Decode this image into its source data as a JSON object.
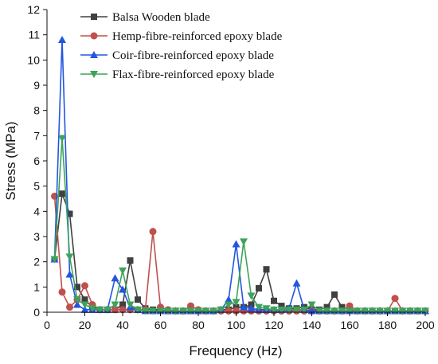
{
  "chart_data": {
    "type": "line",
    "xlabel": "Frequency (Hz)",
    "ylabel": "Stress (MPa)",
    "xlim": [
      0,
      200
    ],
    "ylim": [
      0,
      12
    ],
    "xticks": [
      "0",
      "20",
      "40",
      "60",
      "80",
      "100",
      "120",
      "140",
      "160",
      "180",
      "200"
    ],
    "yticks": [
      "0",
      "1",
      "2",
      "3",
      "4",
      "5",
      "6",
      "7",
      "8",
      "9",
      "10",
      "11",
      "12"
    ],
    "grid": false,
    "legend_position": "top-center",
    "series": [
      {
        "name": "Balsa Wooden blade",
        "color": "#404040",
        "marker": "square",
        "x": [
          4,
          8,
          12,
          16,
          20,
          24,
          28,
          32,
          36,
          40,
          44,
          48,
          52,
          56,
          60,
          64,
          68,
          72,
          76,
          80,
          84,
          88,
          92,
          96,
          100,
          104,
          108,
          112,
          116,
          120,
          124,
          128,
          132,
          136,
          140,
          144,
          148,
          152,
          156,
          160,
          164,
          168,
          172,
          176,
          180,
          184,
          188,
          192,
          196,
          200
        ],
        "y": [
          2.1,
          4.7,
          3.9,
          1.0,
          0.5,
          0.2,
          0.1,
          0.1,
          0.1,
          0.3,
          2.05,
          0.5,
          0.15,
          0.1,
          0.1,
          0.05,
          0.05,
          0.05,
          0.05,
          0.05,
          0.05,
          0.05,
          0.1,
          0.1,
          0.2,
          0.2,
          0.3,
          0.95,
          1.7,
          0.45,
          0.25,
          0.15,
          0.15,
          0.2,
          0.1,
          0.1,
          0.2,
          0.7,
          0.2,
          0.1,
          0.05,
          0.05,
          0.05,
          0.05,
          0.05,
          0.05,
          0.05,
          0.05,
          0.05,
          0.05
        ]
      },
      {
        "name": "Hemp-fibre-reinforced epoxy blade",
        "color": "#c0504d",
        "marker": "circle",
        "x": [
          4,
          8,
          12,
          16,
          20,
          24,
          28,
          32,
          36,
          40,
          44,
          48,
          52,
          56,
          60,
          64,
          68,
          72,
          76,
          80,
          84,
          88,
          92,
          96,
          100,
          104,
          108,
          112,
          116,
          120,
          124,
          128,
          132,
          136,
          140,
          144,
          148,
          152,
          156,
          160,
          164,
          168,
          172,
          176,
          180,
          184,
          188,
          192,
          196,
          200
        ],
        "y": [
          4.6,
          0.8,
          0.2,
          0.5,
          1.05,
          0.3,
          0.1,
          0.1,
          0.1,
          0.1,
          0.1,
          0.1,
          0.1,
          3.2,
          0.2,
          0.1,
          0.05,
          0.05,
          0.25,
          0.1,
          0.05,
          0.05,
          0.05,
          0.05,
          0.05,
          0.05,
          0.05,
          0.05,
          0.05,
          0.05,
          0.05,
          0.05,
          0.05,
          0.05,
          0.05,
          0.05,
          0.05,
          0.05,
          0.05,
          0.25,
          0.05,
          0.05,
          0.05,
          0.05,
          0.05,
          0.55,
          0.05,
          0.05,
          0.05,
          0.05
        ]
      },
      {
        "name": "Coir-fibre-reinforced epoxy blade",
        "color": "#2255e0",
        "marker": "triangle-up",
        "x": [
          4,
          8,
          12,
          16,
          20,
          24,
          28,
          32,
          36,
          40,
          44,
          48,
          52,
          56,
          60,
          64,
          68,
          72,
          76,
          80,
          84,
          88,
          92,
          96,
          100,
          104,
          108,
          112,
          116,
          120,
          124,
          128,
          132,
          136,
          140,
          144,
          148,
          152,
          156,
          160,
          164,
          168,
          172,
          176,
          180,
          184,
          188,
          192,
          196,
          200
        ],
        "y": [
          2.1,
          10.8,
          1.5,
          0.3,
          0.1,
          0.1,
          0.1,
          0.1,
          1.35,
          0.9,
          0.2,
          0.1,
          0.05,
          0.05,
          0.05,
          0.05,
          0.05,
          0.05,
          0.05,
          0.05,
          0.05,
          0.05,
          0.1,
          0.5,
          2.7,
          0.2,
          0.15,
          0.1,
          0.1,
          0.1,
          0.1,
          0.15,
          1.15,
          0.1,
          0.05,
          0.05,
          0.05,
          0.05,
          0.05,
          0.05,
          0.05,
          0.05,
          0.05,
          0.05,
          0.05,
          0.05,
          0.05,
          0.05,
          0.05,
          0.05
        ]
      },
      {
        "name": "Flax-fibre-reinforced epoxy blade",
        "color": "#3da35a",
        "marker": "triangle-down",
        "x": [
          4,
          8,
          12,
          16,
          20,
          24,
          28,
          32,
          36,
          40,
          44,
          48,
          52,
          56,
          60,
          64,
          68,
          72,
          76,
          80,
          84,
          88,
          92,
          96,
          100,
          104,
          108,
          112,
          116,
          120,
          124,
          128,
          132,
          136,
          140,
          144,
          148,
          152,
          156,
          160,
          164,
          168,
          172,
          176,
          180,
          184,
          188,
          192,
          196,
          200
        ],
        "y": [
          2.1,
          6.9,
          2.2,
          0.5,
          0.3,
          0.15,
          0.1,
          0.1,
          0.3,
          1.65,
          0.3,
          0.1,
          0.05,
          0.05,
          0.05,
          0.05,
          0.05,
          0.05,
          0.05,
          0.05,
          0.05,
          0.05,
          0.1,
          0.3,
          0.4,
          2.8,
          0.65,
          0.2,
          0.15,
          0.1,
          0.1,
          0.1,
          0.1,
          0.1,
          0.3,
          0.05,
          0.05,
          0.05,
          0.05,
          0.05,
          0.05,
          0.05,
          0.05,
          0.05,
          0.05,
          0.05,
          0.05,
          0.05,
          0.05,
          0.05
        ]
      }
    ]
  }
}
